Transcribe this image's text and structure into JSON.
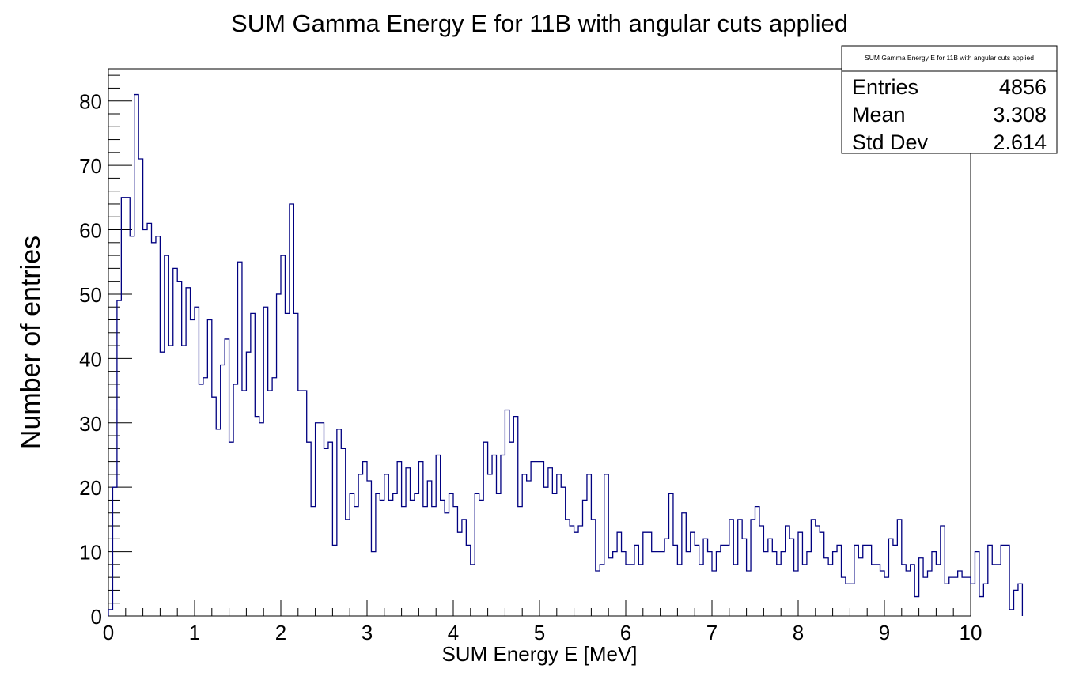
{
  "chart_data": {
    "type": "histogram",
    "title": "SUM Gamma Energy E for 11B with angular cuts applied",
    "xlabel": "SUM Energy E [MeV]",
    "ylabel": "Number of entries",
    "xlim": [
      0,
      10
    ],
    "ylim": [
      0,
      85
    ],
    "bin_width": 0.05,
    "x_ticks": [
      "0",
      "1",
      "2",
      "3",
      "4",
      "5",
      "6",
      "7",
      "8",
      "9",
      "10"
    ],
    "y_ticks": [
      "0",
      "10",
      "20",
      "30",
      "40",
      "50",
      "60",
      "70",
      "80"
    ],
    "grid": false,
    "line_color": "#000080",
    "values": [
      1,
      20,
      49,
      65,
      65,
      59,
      81,
      71,
      60,
      61,
      58,
      59,
      41,
      56,
      42,
      54,
      52,
      42,
      51,
      46,
      48,
      36,
      37,
      46,
      34,
      29,
      39,
      43,
      27,
      36,
      55,
      35,
      41,
      47,
      31,
      30,
      48,
      35,
      37,
      50,
      56,
      47,
      64,
      47,
      35,
      35,
      27,
      17,
      30,
      30,
      26,
      27,
      11,
      29,
      26,
      15,
      19,
      17,
      22,
      24,
      21,
      10,
      19,
      18,
      22,
      18,
      19,
      24,
      17,
      23,
      18,
      19,
      24,
      17,
      21,
      17,
      25,
      18,
      16,
      19,
      17,
      13,
      15,
      11,
      8,
      19,
      18,
      27,
      22,
      25,
      19,
      25,
      32,
      27,
      31,
      17,
      22,
      21,
      24,
      24,
      24,
      20,
      23,
      19,
      22,
      20,
      15,
      14,
      13,
      14,
      18,
      22,
      15,
      7,
      8,
      22,
      9,
      10,
      13,
      10,
      8,
      8,
      11,
      8,
      13,
      13,
      10,
      10,
      10,
      12,
      19,
      11,
      8,
      16,
      10,
      13,
      11,
      8,
      12,
      10,
      7,
      10,
      11,
      11,
      15,
      8,
      15,
      12,
      7,
      15,
      17,
      14,
      10,
      12,
      10,
      8,
      10,
      14,
      12,
      7,
      13,
      8,
      10,
      15,
      14,
      13,
      9,
      8,
      10,
      11,
      6,
      5,
      5,
      11,
      9,
      11,
      11,
      8,
      8,
      7,
      6,
      12,
      11,
      15,
      8,
      7,
      8,
      3,
      9,
      6,
      7,
      10,
      8,
      14,
      5,
      6,
      6,
      7,
      6,
      6,
      5,
      10,
      3,
      5,
      11,
      8,
      8,
      11,
      11,
      1,
      4,
      5
    ]
  },
  "stats_box": {
    "title": "SUM Gamma Energy E for 11B with angular cuts applied",
    "rows": [
      {
        "label": "Entries",
        "value": "4856"
      },
      {
        "label": "Mean",
        "value": "3.308"
      },
      {
        "label": "Std Dev",
        "value": "2.614"
      }
    ]
  }
}
